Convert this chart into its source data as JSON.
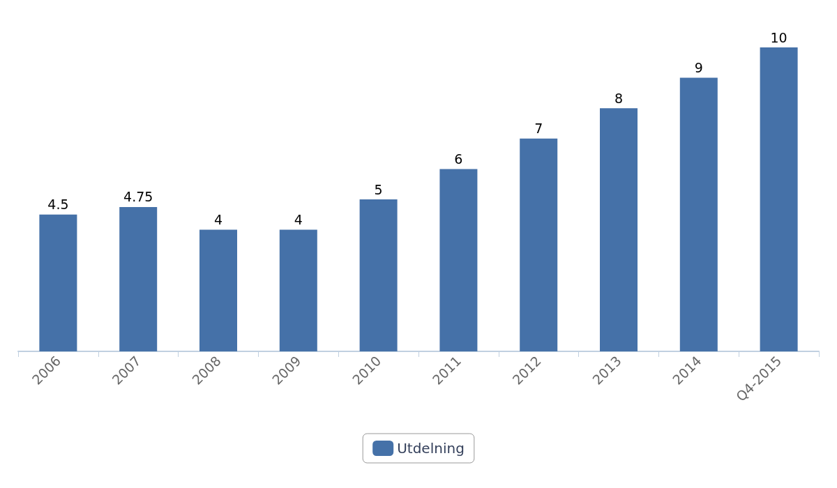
{
  "chart_data": {
    "type": "bar",
    "categories": [
      "2006",
      "2007",
      "2008",
      "2009",
      "2010",
      "2011",
      "2012",
      "2013",
      "2014",
      "Q4-2015"
    ],
    "series": [
      {
        "name": "Utdelning",
        "color": "#4571a8",
        "values": [
          4.5,
          4.75,
          4,
          4,
          5,
          6,
          7,
          8,
          9,
          10
        ]
      }
    ],
    "data_labels": true,
    "legend": "bottom",
    "grid": false
  }
}
